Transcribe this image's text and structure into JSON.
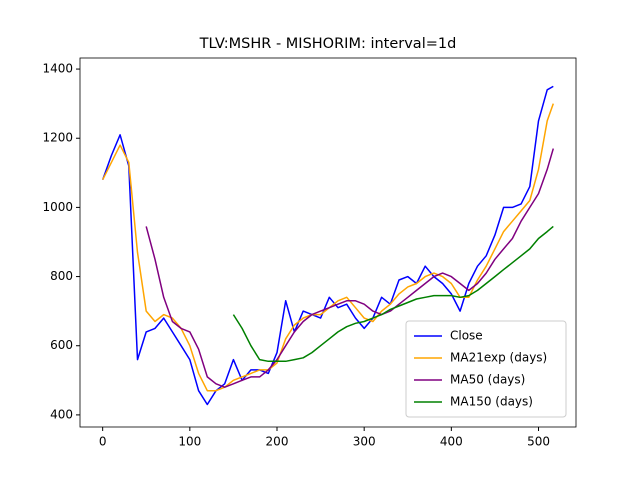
{
  "chart_data": {
    "type": "line",
    "title": "TLV:MSHR - MISHORIM: interval=1d",
    "x": [
      0,
      10,
      20,
      30,
      40,
      50,
      60,
      70,
      80,
      90,
      100,
      110,
      120,
      130,
      140,
      150,
      160,
      170,
      180,
      190,
      200,
      210,
      220,
      230,
      240,
      250,
      260,
      270,
      280,
      290,
      300,
      310,
      320,
      330,
      340,
      350,
      360,
      370,
      380,
      390,
      400,
      410,
      420,
      430,
      440,
      450,
      460,
      470,
      480,
      490,
      500,
      510,
      517
    ],
    "series": [
      {
        "name": "Close",
        "color": "#0000ff",
        "values": [
          1080,
          1150,
          1210,
          1120,
          560,
          640,
          650,
          680,
          640,
          600,
          560,
          470,
          430,
          470,
          490,
          560,
          500,
          530,
          530,
          520,
          580,
          730,
          640,
          700,
          690,
          680,
          740,
          710,
          720,
          680,
          650,
          680,
          740,
          720,
          790,
          800,
          780,
          830,
          800,
          780,
          750,
          700,
          780,
          830,
          860,
          920,
          1000,
          1000,
          1010,
          1060,
          1250,
          1340,
          1350
        ]
      },
      {
        "name": "MA21exp (days)",
        "color": "#ffa500",
        "values": [
          1080,
          1130,
          1180,
          1130,
          870,
          700,
          670,
          690,
          680,
          650,
          600,
          520,
          470,
          470,
          480,
          500,
          510,
          520,
          530,
          530,
          550,
          620,
          660,
          680,
          690,
          690,
          710,
          730,
          740,
          710,
          680,
          670,
          700,
          720,
          750,
          770,
          780,
          800,
          810,
          800,
          780,
          740,
          740,
          790,
          830,
          880,
          930,
          960,
          990,
          1020,
          1110,
          1250,
          1300
        ]
      },
      {
        "name": "MA50 (days)",
        "color": "#800080",
        "values": [
          null,
          null,
          null,
          null,
          null,
          945,
          850,
          740,
          670,
          650,
          640,
          590,
          510,
          490,
          480,
          490,
          500,
          510,
          510,
          530,
          560,
          600,
          640,
          670,
          690,
          700,
          710,
          720,
          730,
          730,
          720,
          700,
          690,
          700,
          720,
          740,
          760,
          780,
          800,
          810,
          800,
          780,
          760,
          780,
          810,
          850,
          880,
          910,
          960,
          1000,
          1040,
          1110,
          1170
        ]
      },
      {
        "name": "MA150 (days)",
        "color": "#008000",
        "values": [
          null,
          null,
          null,
          null,
          null,
          null,
          null,
          null,
          null,
          null,
          null,
          null,
          null,
          null,
          null,
          690,
          650,
          600,
          560,
          555,
          555,
          555,
          560,
          565,
          580,
          600,
          620,
          640,
          655,
          665,
          670,
          680,
          690,
          705,
          715,
          725,
          735,
          740,
          745,
          745,
          745,
          740,
          745,
          760,
          780,
          800,
          820,
          840,
          860,
          880,
          910,
          930,
          945
        ]
      }
    ],
    "xlim": [
      -26,
      543
    ],
    "ylim": [
      365,
      1432
    ],
    "xticks": [
      0,
      100,
      200,
      300,
      400,
      500
    ],
    "yticks": [
      400,
      600,
      800,
      1000,
      1200,
      1400
    ],
    "legend": "lower right"
  }
}
